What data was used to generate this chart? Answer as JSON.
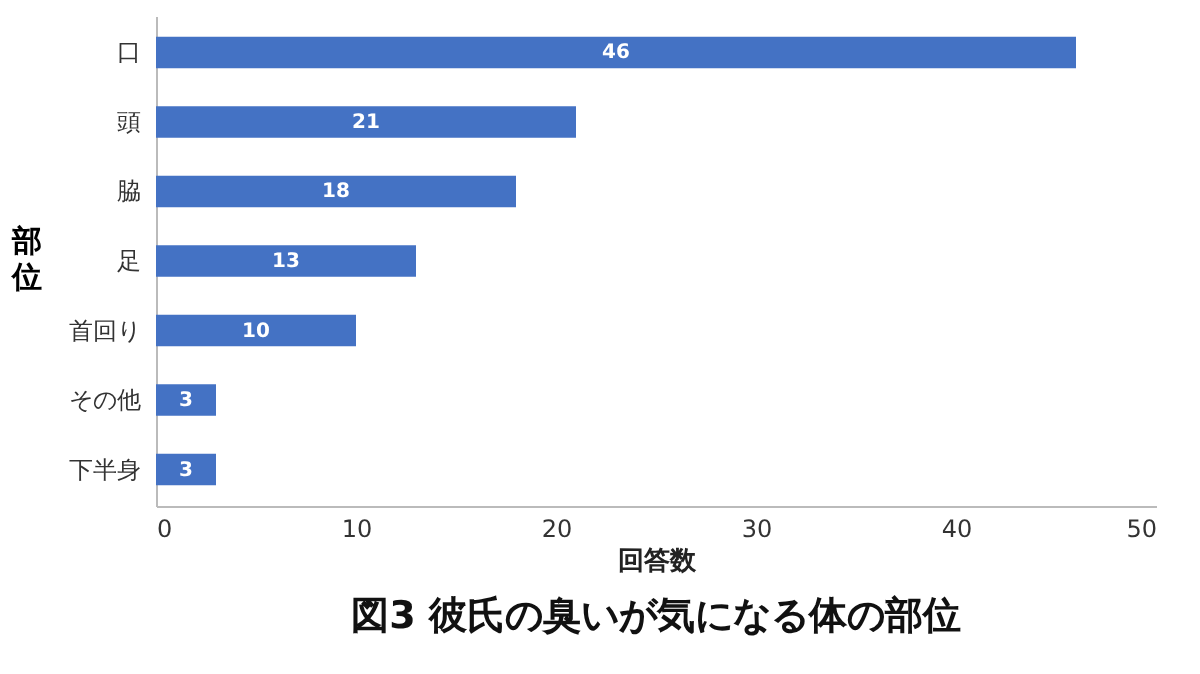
{
  "chart_data": {
    "type": "bar",
    "orientation": "horizontal",
    "title": "図3 彼氏の臭いが気になる体の部位",
    "xlabel": "回答数",
    "ylabel": "部位",
    "categories": [
      "口",
      "頭",
      "脇",
      "足",
      "首回り",
      "その他",
      "下半身"
    ],
    "values": [
      46,
      21,
      18,
      13,
      10,
      3,
      3
    ],
    "color": "#4472c4",
    "data_labels": true,
    "xlim": [
      0,
      50
    ],
    "xticks": [
      0,
      10,
      20,
      30,
      40,
      50
    ],
    "grid": false
  }
}
